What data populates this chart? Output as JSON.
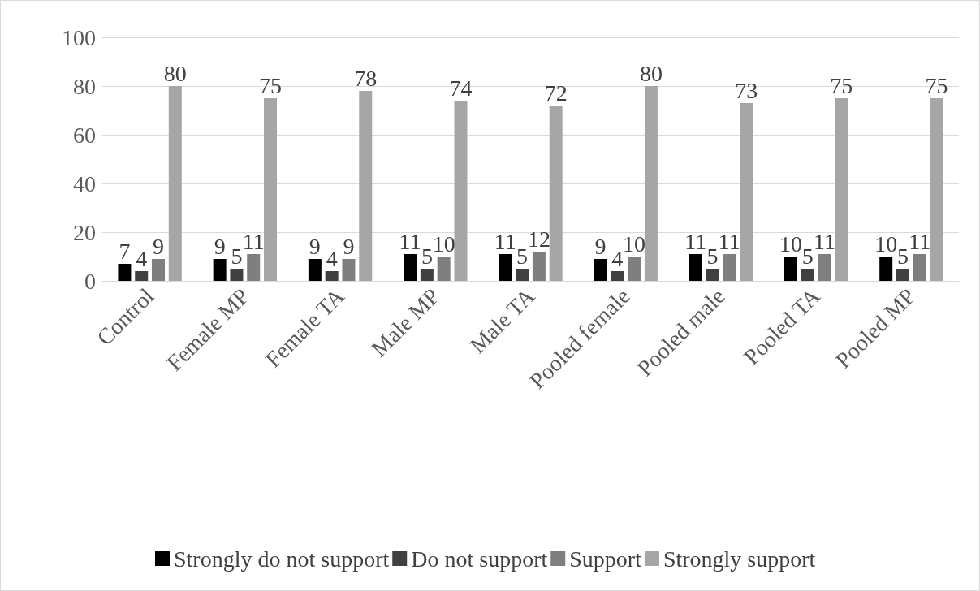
{
  "chart_data": {
    "type": "bar",
    "categories": [
      "Control",
      "Female MP",
      "Female TA",
      "Male MP",
      "Male TA",
      "Pooled female",
      "Pooled male",
      "Pooled TA",
      "Pooled MP"
    ],
    "series": [
      {
        "name": "Strongly do not support",
        "color": "#000000",
        "values": [
          7,
          9,
          9,
          11,
          11,
          9,
          11,
          10,
          10
        ]
      },
      {
        "name": "Do not support",
        "color": "#404040",
        "values": [
          4,
          5,
          4,
          5,
          5,
          4,
          5,
          5,
          5
        ]
      },
      {
        "name": "Support",
        "color": "#7f7f7f",
        "values": [
          9,
          11,
          9,
          10,
          12,
          10,
          11,
          11,
          11
        ]
      },
      {
        "name": "Strongly support",
        "color": "#a6a6a6",
        "values": [
          80,
          75,
          78,
          74,
          72,
          80,
          73,
          75,
          75
        ]
      }
    ],
    "ylim": [
      0,
      100
    ],
    "yticks": [
      0,
      20,
      40,
      60,
      80,
      100
    ],
    "grid": "y",
    "legend": "bottom",
    "data_labels": true
  }
}
